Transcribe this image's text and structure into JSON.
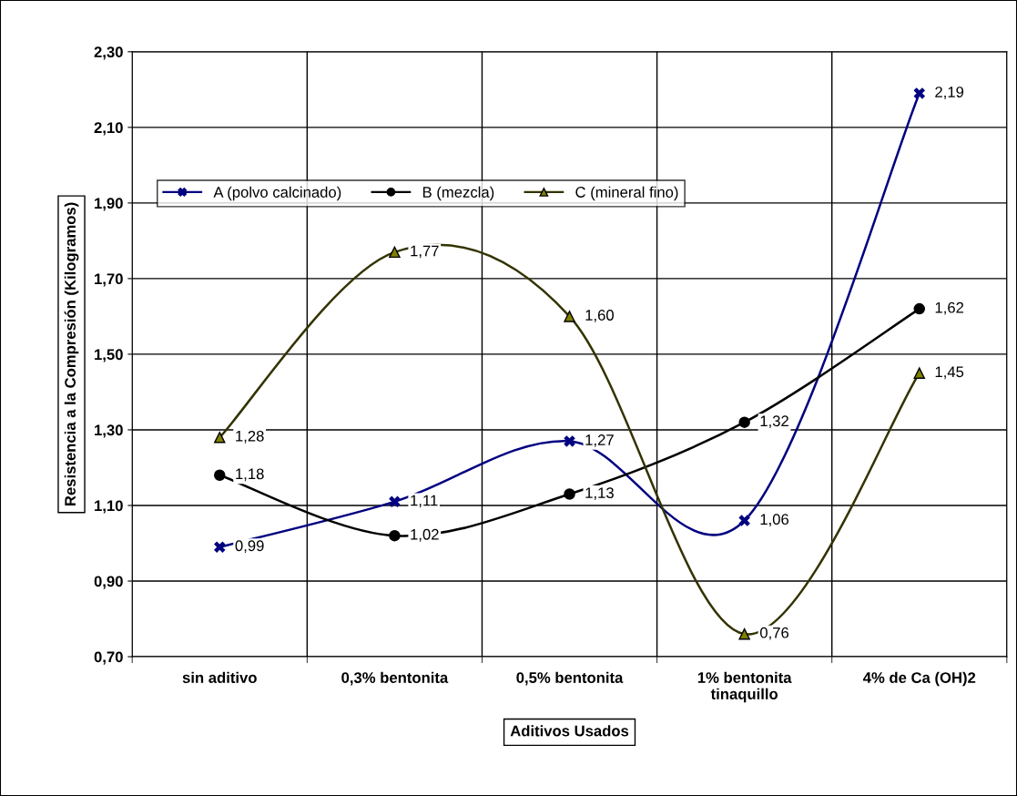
{
  "chart_data": {
    "type": "line",
    "xlabel": "Aditivos Usados",
    "ylabel": "Resistencia a la Compresión (Kilogramos)",
    "categories": [
      "sin aditivo",
      "0,3% bentonita",
      "0,5% bentonita",
      "1% bentonita\ntinaquillo",
      "4% de Ca (OH)2"
    ],
    "ylim": [
      0.7,
      2.3
    ],
    "yticks": [
      {
        "value": 0.7,
        "label": "0,70"
      },
      {
        "value": 0.9,
        "label": "0,90"
      },
      {
        "value": 1.1,
        "label": "1,10"
      },
      {
        "value": 1.3,
        "label": "1,30"
      },
      {
        "value": 1.5,
        "label": "1,50"
      },
      {
        "value": 1.7,
        "label": "1,70"
      },
      {
        "value": 1.9,
        "label": "1,90"
      },
      {
        "value": 2.1,
        "label": "2,10"
      },
      {
        "value": 2.3,
        "label": "2,30"
      }
    ],
    "grid": true,
    "legend": "top left",
    "line_style": "solid",
    "series": [
      {
        "name": "A (polvo calcinado)",
        "color": "#000080",
        "marker": "cross",
        "values": [
          0.99,
          1.11,
          1.27,
          1.06,
          2.19
        ],
        "value_labels": [
          "0,99",
          "1,11",
          "1,27",
          "1,06",
          "2,19"
        ]
      },
      {
        "name": "B (mezcla)",
        "color": "#000000",
        "marker": "circle",
        "values": [
          1.18,
          1.02,
          1.13,
          1.32,
          1.62
        ],
        "value_labels": [
          "1,18",
          "1,02",
          "1,13",
          "1,32",
          "1,62"
        ]
      },
      {
        "name": "C (mineral fino)",
        "color": "#333300",
        "marker": "triangle",
        "values": [
          1.28,
          1.77,
          1.6,
          0.76,
          1.45
        ],
        "value_labels": [
          "1,28",
          "1,77",
          "1,60",
          "0,76",
          "1,45"
        ]
      }
    ]
  }
}
